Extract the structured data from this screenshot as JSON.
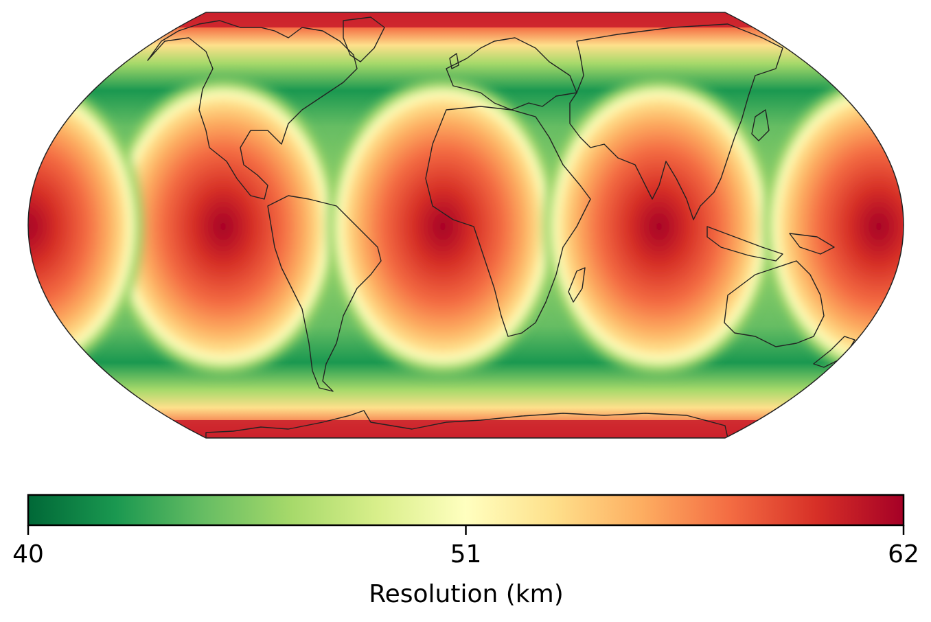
{
  "colorbar": {
    "label": "Resolution (km)",
    "min": 40,
    "max": 62,
    "ticks": [
      {
        "value": 40,
        "label": "40"
      },
      {
        "value": 51,
        "label": "51"
      },
      {
        "value": 62,
        "label": "62"
      }
    ],
    "colormap": "RdYlGn_r",
    "colormap_stops": [
      "#006837",
      "#1a9850",
      "#66bd63",
      "#a6d96a",
      "#d9ef8b",
      "#ffffbf",
      "#fee08b",
      "#fdae61",
      "#f46d43",
      "#d73027",
      "#a50026"
    ]
  },
  "map": {
    "projection": "Robinson",
    "coastlines": "black",
    "field_description": "icosahedral-grid resolution pattern"
  }
}
